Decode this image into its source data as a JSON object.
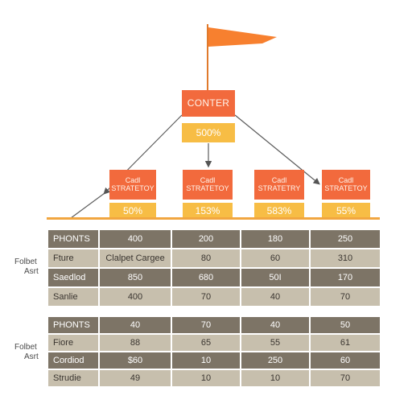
{
  "root": {
    "label": "CONTER",
    "value": "500%"
  },
  "branches": [
    {
      "line1": "Cadl",
      "line2": "STRATETOY",
      "value": "50%"
    },
    {
      "line1": "Cadl",
      "line2": "STRATETOY",
      "value": "153%"
    },
    {
      "line1": "Cadl",
      "line2": "STRATETRY",
      "value": "583%"
    },
    {
      "line1": "Cadl",
      "line2": "STRATETOY",
      "value": "55%"
    }
  ],
  "side_labels": [
    {
      "line1": "Folbet",
      "line2": "Asrt"
    },
    {
      "line1": "Folbet",
      "line2": "Asrt"
    }
  ],
  "tables": [
    {
      "rows": [
        {
          "label": "PHONTS",
          "cells": [
            "400",
            "200",
            "180",
            "250"
          ]
        },
        {
          "label": "Fture",
          "cells": [
            "Clalpet Cargee",
            "80",
            "60",
            "310"
          ]
        },
        {
          "label": "Saedlod",
          "cells": [
            "850",
            "680",
            "50I",
            "170"
          ]
        },
        {
          "label": "Sanlie",
          "cells": [
            "400",
            "70",
            "40",
            "70"
          ]
        }
      ]
    },
    {
      "rows": [
        {
          "label": "PHONTS",
          "cells": [
            "40",
            "70",
            "40",
            "50"
          ]
        },
        {
          "label": "Fiore",
          "cells": [
            "88",
            "65",
            "55",
            "61"
          ]
        },
        {
          "label": "Cordiod",
          "cells": [
            "$60",
            "10",
            "250",
            "60"
          ]
        },
        {
          "label": "Strudie",
          "cells": [
            "49",
            "10",
            "10",
            "70"
          ]
        }
      ]
    }
  ],
  "colors": {
    "flag": "#f7802f",
    "box_orange": "#f26a3d",
    "box_yellow": "#f7bd45",
    "row_dark": "#7d7466",
    "row_light": "#c7bfad"
  }
}
